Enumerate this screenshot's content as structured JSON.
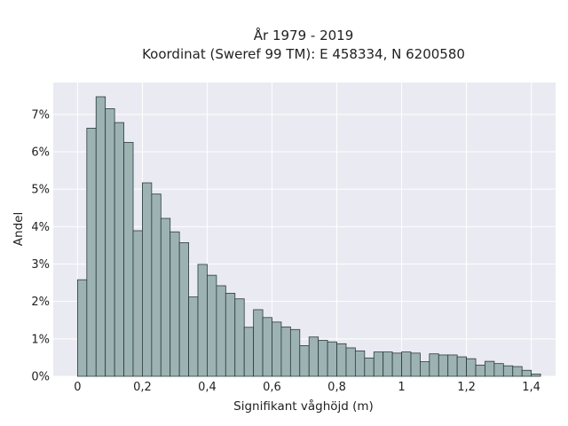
{
  "chart_data": {
    "type": "bar",
    "title_line1": "År 1979 - 2019",
    "title_line2": "Koordinat (Sweref 99 TM): E 458334, N 6200580",
    "xlabel": "Signifikant våghöjd (m)",
    "ylabel": "Andel",
    "xlim": [
      -0.075,
      1.475
    ],
    "ylim": [
      0,
      7.85
    ],
    "x_ticks": [
      0,
      0.2,
      0.4,
      0.6,
      0.8,
      1,
      1.2,
      1.4
    ],
    "x_tick_labels": [
      "0",
      "0,2",
      "0,4",
      "0,6",
      "0,8",
      "1",
      "1,2",
      "1,4"
    ],
    "y_ticks": [
      0,
      1,
      2,
      3,
      4,
      5,
      6,
      7
    ],
    "y_tick_labels": [
      "0%",
      "1%",
      "2%",
      "3%",
      "4%",
      "5%",
      "6%",
      "7%"
    ],
    "grid": true,
    "bin_width": 0.0286,
    "bins_start": [
      0,
      0.0286,
      0.0571,
      0.0857,
      0.1143,
      0.1429,
      0.1714,
      0.2,
      0.2286,
      0.2571,
      0.2857,
      0.3143,
      0.3429,
      0.3714,
      0.4,
      0.4286,
      0.4571,
      0.4857,
      0.5143,
      0.5429,
      0.5714,
      0.6,
      0.6286,
      0.6571,
      0.6857,
      0.7143,
      0.7429,
      0.7714,
      0.8,
      0.8286,
      0.8571,
      0.8857,
      0.9143,
      0.9429,
      0.9714,
      1.0,
      1.0286,
      1.0571,
      1.0857,
      1.1143,
      1.1429,
      1.1714,
      1.2,
      1.2286,
      1.2571,
      1.2857,
      1.3143,
      1.3429,
      1.3714,
      1.4
    ],
    "values": [
      2.58,
      6.63,
      7.47,
      7.15,
      6.78,
      6.25,
      3.89,
      5.17,
      4.87,
      4.22,
      3.86,
      3.57,
      2.12,
      2.99,
      2.7,
      2.42,
      2.22,
      2.07,
      1.31,
      1.78,
      1.57,
      1.45,
      1.32,
      1.25,
      0.82,
      1.05,
      0.96,
      0.92,
      0.87,
      0.76,
      0.68,
      0.49,
      0.65,
      0.65,
      0.62,
      0.65,
      0.62,
      0.39,
      0.6,
      0.57,
      0.57,
      0.52,
      0.47,
      0.3,
      0.4,
      0.34,
      0.28,
      0.26,
      0.16,
      0.06
    ],
    "bar_color": "#9db3b3",
    "edge_color": "#2b3a3a",
    "background_color": "#eaeaf2",
    "grid_color": "#ffffff"
  }
}
